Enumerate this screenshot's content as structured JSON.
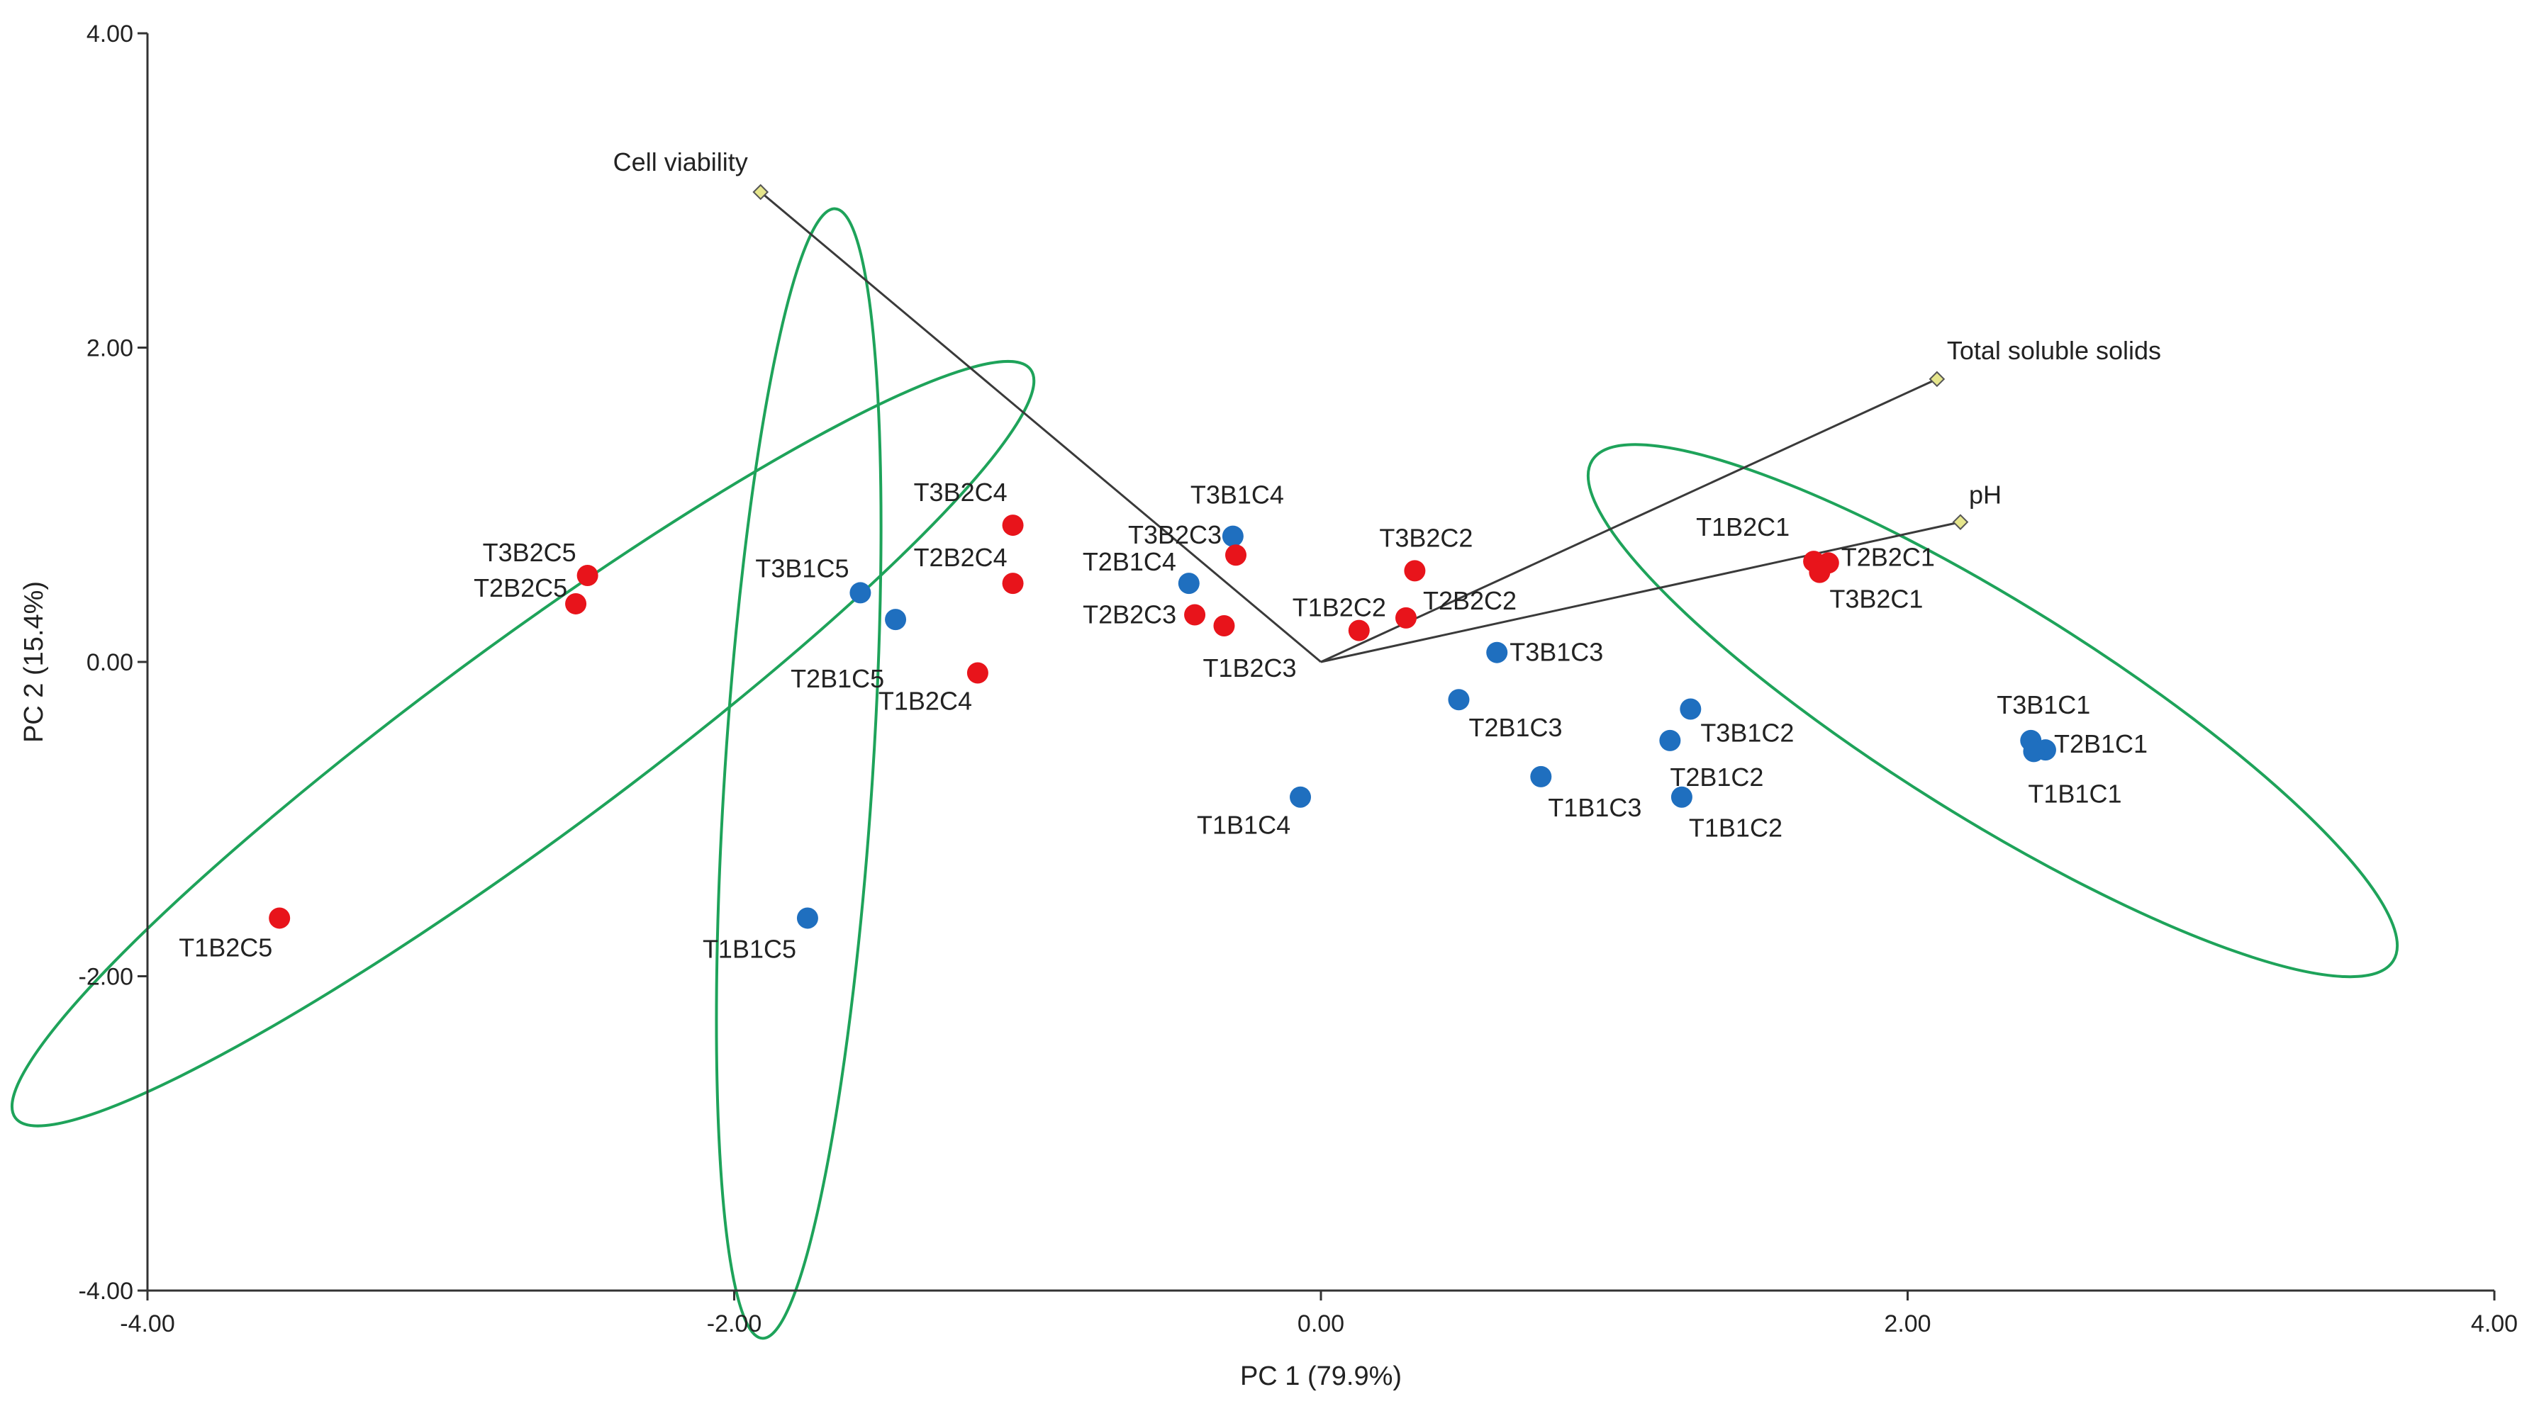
{
  "chart_data": {
    "type": "scatter",
    "subtype": "pca-biplot",
    "title": "",
    "xlabel": "PC 1 (79.9%)",
    "ylabel": "PC 2 (15.4%)",
    "xlim": [
      -4,
      4
    ],
    "ylim": [
      -4,
      4
    ],
    "xticks": [
      -4,
      -2,
      0,
      2,
      4
    ],
    "yticks": [
      -4,
      -2,
      0,
      2,
      4
    ],
    "xtick_labels": [
      "-4.00",
      "-2.00",
      "0.00",
      "2.00",
      "4.00"
    ],
    "ytick_labels": [
      "-4.00",
      "-2.00",
      "0.00",
      "2.00",
      "4.00"
    ],
    "grid": false,
    "colors": {
      "B1": "#1f6fbf",
      "B2": "#e8141b",
      "vector": "#3a3a3a",
      "vector_tip": "#e6e68c",
      "ellipse": "#1ea35a",
      "axis": "#333333"
    },
    "series": [
      {
        "name": "B1",
        "color": "#1f6fbf",
        "points": [
          {
            "label": "T3B1C4",
            "x": -0.3,
            "y": 0.8
          },
          {
            "label": "T2B1C4",
            "x": -0.45,
            "y": 0.5
          },
          {
            "label": "T3B1C5",
            "x": -1.57,
            "y": 0.44
          },
          {
            "label": "T2B1C5",
            "x": -1.45,
            "y": 0.27
          },
          {
            "label": "T1B1C5",
            "x": -1.75,
            "y": -1.63
          },
          {
            "label": "T1B1C4",
            "x": -0.07,
            "y": -0.86
          },
          {
            "label": "T3B1C3",
            "x": 0.6,
            "y": 0.06
          },
          {
            "label": "T2B1C3",
            "x": 0.47,
            "y": -0.24
          },
          {
            "label": "T1B1C3",
            "x": 0.75,
            "y": -0.73
          },
          {
            "label": "T3B1C2",
            "x": 1.26,
            "y": -0.3
          },
          {
            "label": "T2B1C2",
            "x": 1.19,
            "y": -0.5
          },
          {
            "label": "T1B1C2",
            "x": 1.23,
            "y": -0.86
          },
          {
            "label": "T3B1C1",
            "x": 2.42,
            "y": -0.5
          },
          {
            "label": "T2B1C1",
            "x": 2.47,
            "y": -0.56
          },
          {
            "label": "T1B1C1",
            "x": 2.43,
            "y": -0.57
          }
        ]
      },
      {
        "name": "B2",
        "color": "#e8141b",
        "points": [
          {
            "label": "T3B2C5",
            "x": -2.5,
            "y": 0.55
          },
          {
            "label": "T2B2C5",
            "x": -2.54,
            "y": 0.37
          },
          {
            "label": "T1B2C5",
            "x": -3.55,
            "y": -1.63
          },
          {
            "label": "T3B2C4",
            "x": -1.05,
            "y": 0.87
          },
          {
            "label": "T2B2C4",
            "x": -1.05,
            "y": 0.5
          },
          {
            "label": "T1B2C4",
            "x": -1.17,
            "y": -0.07
          },
          {
            "label": "T3B2C3",
            "x": -0.29,
            "y": 0.68
          },
          {
            "label": "T2B2C3",
            "x": -0.43,
            "y": 0.3
          },
          {
            "label": "T1B2C3",
            "x": -0.33,
            "y": 0.23
          },
          {
            "label": "T3B2C2",
            "x": 0.32,
            "y": 0.58
          },
          {
            "label": "T2B2C2",
            "x": 0.29,
            "y": 0.28
          },
          {
            "label": "T1B2C2",
            "x": 0.13,
            "y": 0.2
          },
          {
            "label": "T1B2C1",
            "x": 1.68,
            "y": 0.64
          },
          {
            "label": "T2B2C1",
            "x": 1.73,
            "y": 0.63
          },
          {
            "label": "T3B2C1",
            "x": 1.7,
            "y": 0.57
          }
        ]
      }
    ],
    "vectors": [
      {
        "label": "Cell viability",
        "x": -1.91,
        "y": 2.99
      },
      {
        "label": "Total soluble solids",
        "x": 2.1,
        "y": 1.8
      },
      {
        "label": "pH",
        "x": 2.18,
        "y": 0.89
      }
    ],
    "ellipses": [
      {
        "cx": -2.72,
        "cy": -0.52,
        "rx": 2.15,
        "ry": 0.62,
        "angle_deg": 36.4
      },
      {
        "cx": -1.78,
        "cy": -0.71,
        "rx": 1.93,
        "ry": 0.47,
        "angle_deg": 86.3
      },
      {
        "cx": 2.29,
        "cy": -0.31,
        "rx": 1.61,
        "ry": 0.68,
        "angle_deg": -32
      }
    ]
  }
}
